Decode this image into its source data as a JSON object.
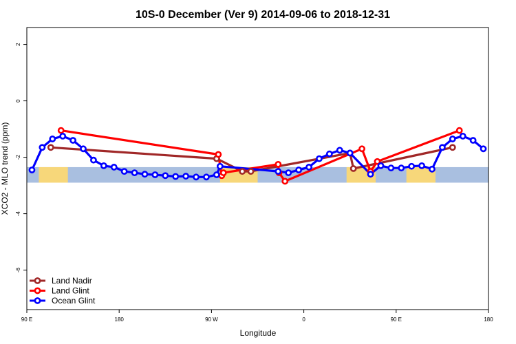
{
  "chart_data": {
    "type": "line",
    "title": "10S-0 December (Ver 9)   2014-09-06 to 2018-12-31",
    "xlabel": "Longitude",
    "ylabel": "XCO2 - MLO trend (ppm)",
    "xlim": [
      -90,
      180
    ],
    "ylim": [
      -7.4,
      2.6
    ],
    "x_ticks": [
      {
        "value": -90,
        "label": "90 E"
      },
      {
        "value": -36,
        "label": "180"
      },
      {
        "value": 18,
        "label": "90 W"
      },
      {
        "value": 72,
        "label": "0"
      },
      {
        "value": 126,
        "label": "90 E"
      },
      {
        "value": 180,
        "label": "180"
      }
    ],
    "y_ticks": [
      2,
      0,
      -2,
      -4,
      -6
    ],
    "band": {
      "y_min": -2.9,
      "y_max": -2.35,
      "color": "#a9bfe0",
      "land_color": "#f7d77a"
    },
    "land_segments": [
      [
        -83,
        -66
      ],
      [
        -48,
        -48
      ],
      [
        23,
        45
      ],
      [
        97,
        114
      ],
      [
        132,
        149
      ]
    ],
    "series": [
      {
        "name": "Land Nadir",
        "color": "#a02828",
        "points": [
          [
            -76,
            -1.65
          ],
          [
            21,
            -2.05
          ],
          [
            36,
            -2.5
          ],
          [
            41,
            -2.5
          ],
          [
            99,
            -1.85
          ],
          [
            101,
            -2.4
          ],
          [
            159,
            -1.65
          ]
        ]
      },
      {
        "name": "Land Glint",
        "color": "#ff0000",
        "points": [
          [
            -70,
            -1.05
          ],
          [
            22,
            -1.9
          ],
          [
            24,
            -2.65
          ],
          [
            25,
            -2.55
          ],
          [
            57,
            -2.25
          ],
          [
            57.5,
            -2.55
          ],
          [
            61,
            -2.85
          ],
          [
            106,
            -1.7
          ],
          [
            111,
            -2.5
          ],
          [
            115,
            -2.15
          ],
          [
            163,
            -1.05
          ]
        ]
      },
      {
        "name": "Ocean Glint",
        "color": "#0000ff",
        "points": [
          [
            -87,
            -2.45
          ],
          [
            -81,
            -1.65
          ],
          [
            -75,
            -1.35
          ],
          [
            -69,
            -1.25
          ],
          [
            -63,
            -1.4
          ],
          [
            -57,
            -1.7
          ],
          [
            -51,
            -2.1
          ],
          [
            -45,
            -2.3
          ],
          [
            -39,
            -2.35
          ],
          [
            -33,
            -2.5
          ],
          [
            -27,
            -2.55
          ],
          [
            -21,
            -2.6
          ],
          [
            -15,
            -2.62
          ],
          [
            -9,
            -2.65
          ],
          [
            -3,
            -2.68
          ],
          [
            3,
            -2.67
          ],
          [
            9,
            -2.7
          ],
          [
            15,
            -2.7
          ],
          [
            21,
            -2.62
          ],
          [
            23,
            -2.32
          ],
          [
            57,
            -2.5
          ],
          [
            63,
            -2.55
          ],
          [
            69,
            -2.45
          ],
          [
            75,
            -2.35
          ],
          [
            81,
            -2.05
          ],
          [
            87,
            -1.88
          ],
          [
            93,
            -1.75
          ],
          [
            99,
            -1.85
          ],
          [
            111,
            -2.6
          ],
          [
            117,
            -2.3
          ],
          [
            123,
            -2.38
          ],
          [
            129,
            -2.38
          ],
          [
            135,
            -2.32
          ],
          [
            141,
            -2.3
          ],
          [
            147,
            -2.42
          ],
          [
            153,
            -1.65
          ],
          [
            159,
            -1.35
          ],
          [
            165,
            -1.25
          ],
          [
            171,
            -1.4
          ],
          [
            177,
            -1.7
          ]
        ]
      }
    ],
    "legend_position": "bottom-left"
  }
}
